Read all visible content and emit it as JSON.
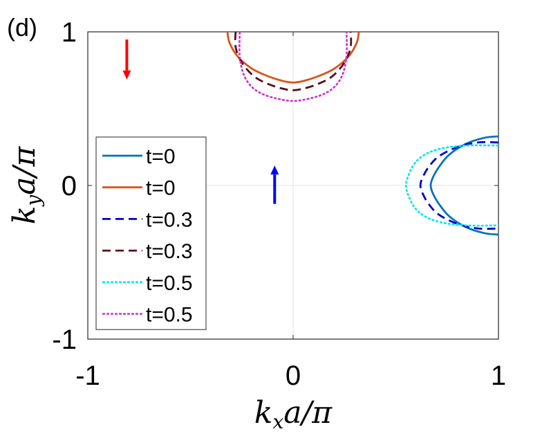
{
  "panel_label": "(d)",
  "chart_data": {
    "type": "line",
    "xlabel": "k_x a/π",
    "ylabel": "k_y a/π",
    "xlim": [
      -1,
      1
    ],
    "ylim": [
      -1,
      1
    ],
    "xticks": [
      "-1",
      "0",
      "1"
    ],
    "yticks": [
      "-1",
      "0",
      "1"
    ],
    "grid": "center lines",
    "legend_position": "left",
    "series": [
      {
        "name": "t=0",
        "color": "#0072BD",
        "dash": "solid",
        "x": [
          1.0,
          0.93,
          0.84,
          0.76,
          0.71,
          0.68,
          0.67,
          0.68,
          0.71,
          0.76,
          0.84,
          0.93,
          1.0
        ],
        "y": [
          0.32,
          0.31,
          0.27,
          0.2,
          0.12,
          0.05,
          0.0,
          -0.05,
          -0.12,
          -0.2,
          -0.27,
          -0.31,
          -0.32
        ]
      },
      {
        "name": "t=0",
        "color": "#D95319",
        "dash": "solid",
        "x": [
          -0.32,
          -0.31,
          -0.27,
          -0.2,
          -0.12,
          -0.05,
          0.0,
          0.05,
          0.12,
          0.2,
          0.27,
          0.31,
          0.32
        ],
        "y": [
          1.0,
          0.93,
          0.84,
          0.76,
          0.71,
          0.68,
          0.67,
          0.68,
          0.71,
          0.76,
          0.84,
          0.93,
          1.0
        ]
      },
      {
        "name": "t=0.3",
        "color": "#0000CC",
        "dash": "dashed",
        "x": [
          1.0,
          0.9,
          0.8,
          0.71,
          0.66,
          0.63,
          0.62,
          0.63,
          0.66,
          0.71,
          0.8,
          0.9,
          1.0
        ],
        "y": [
          0.28,
          0.28,
          0.25,
          0.19,
          0.12,
          0.05,
          0.0,
          -0.05,
          -0.12,
          -0.19,
          -0.25,
          -0.28,
          -0.28
        ]
      },
      {
        "name": "t=0.3",
        "color": "#5C0A1E",
        "dash": "dashed",
        "x": [
          -0.28,
          -0.28,
          -0.25,
          -0.19,
          -0.12,
          -0.05,
          0.0,
          0.05,
          0.12,
          0.19,
          0.25,
          0.28,
          0.28
        ],
        "y": [
          1.0,
          0.9,
          0.8,
          0.71,
          0.66,
          0.63,
          0.62,
          0.63,
          0.66,
          0.71,
          0.8,
          0.9,
          1.0
        ]
      },
      {
        "name": "t=0.5",
        "color": "#00E5EE",
        "dash": "dotted",
        "x": [
          1.0,
          0.84,
          0.72,
          0.64,
          0.59,
          0.56,
          0.55,
          0.56,
          0.59,
          0.64,
          0.72,
          0.84,
          1.0
        ],
        "y": [
          0.26,
          0.26,
          0.24,
          0.2,
          0.14,
          0.06,
          0.0,
          -0.06,
          -0.14,
          -0.2,
          -0.24,
          -0.26,
          -0.26
        ]
      },
      {
        "name": "t=0.5",
        "color": "#CC33CC",
        "dash": "dotted",
        "x": [
          -0.26,
          -0.26,
          -0.24,
          -0.2,
          -0.14,
          -0.06,
          0.0,
          0.06,
          0.14,
          0.2,
          0.24,
          0.26,
          0.26
        ],
        "y": [
          1.0,
          0.84,
          0.72,
          0.64,
          0.59,
          0.56,
          0.55,
          0.56,
          0.59,
          0.64,
          0.72,
          0.84,
          1.0
        ]
      }
    ],
    "arrows": [
      {
        "color": "#FF0000",
        "x": -0.81,
        "y_from": 0.95,
        "y_to": 0.69,
        "direction": "down"
      },
      {
        "color": "#0000FF",
        "x": -0.09,
        "y_from": -0.12,
        "y_to": 0.13,
        "direction": "up"
      }
    ]
  }
}
